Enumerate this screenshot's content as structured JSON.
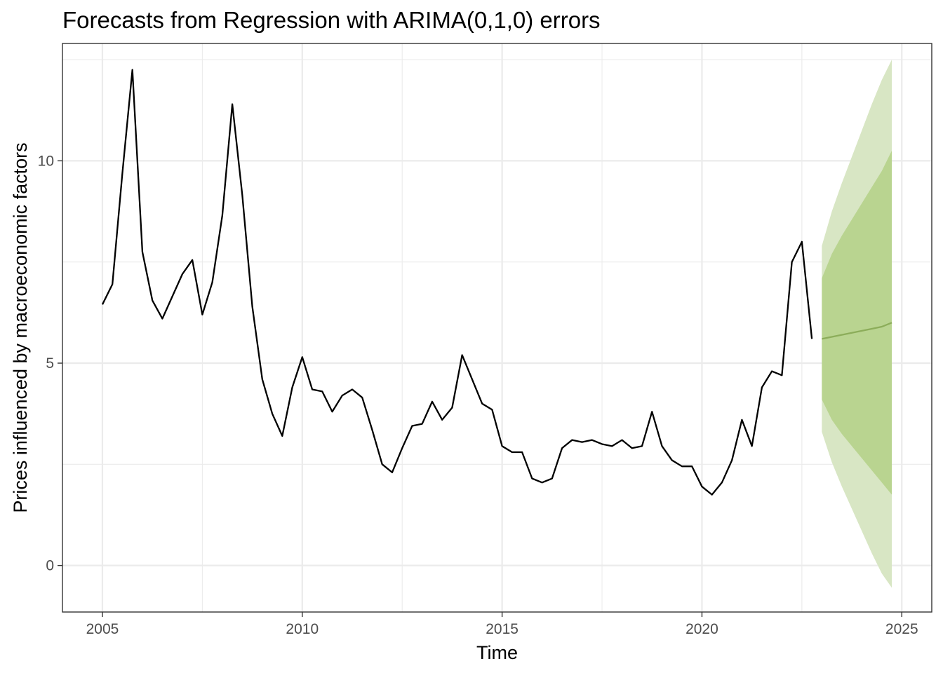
{
  "chart_data": {
    "type": "line",
    "title": "Forecasts from Regression with ARIMA(0,1,0) errors",
    "xlabel": "Time",
    "ylabel": "Prices influenced by macroeconomic factors",
    "xlim": [
      2004.0,
      2025.75
    ],
    "ylim": [
      -1.15,
      12.9
    ],
    "x_ticks": [
      2005,
      2010,
      2015,
      2020,
      2025
    ],
    "x_tick_labels": [
      "2005",
      "2010",
      "2015",
      "2020",
      "2025"
    ],
    "y_ticks": [
      0,
      5,
      10
    ],
    "y_tick_labels": [
      "0",
      "5",
      "10"
    ],
    "grid": true,
    "series": [
      {
        "values": [
          {
            "x": 2005.0,
            "y": 6.45
          },
          {
            "x": 2005.25,
            "y": 6.95
          },
          {
            "x": 2005.5,
            "y": 9.7
          },
          {
            "x": 2005.75,
            "y": 12.25
          },
          {
            "x": 2006.0,
            "y": 7.75
          },
          {
            "x": 2006.25,
            "y": 6.55
          },
          {
            "x": 2006.5,
            "y": 6.1
          },
          {
            "x": 2006.75,
            "y": 6.65
          },
          {
            "x": 2007.0,
            "y": 7.2
          },
          {
            "x": 2007.25,
            "y": 7.55
          },
          {
            "x": 2007.5,
            "y": 6.2
          },
          {
            "x": 2007.75,
            "y": 7.0
          },
          {
            "x": 2008.0,
            "y": 8.65
          },
          {
            "x": 2008.25,
            "y": 11.4
          },
          {
            "x": 2008.5,
            "y": 9.15
          },
          {
            "x": 2008.75,
            "y": 6.4
          },
          {
            "x": 2009.0,
            "y": 4.6
          },
          {
            "x": 2009.25,
            "y": 3.75
          },
          {
            "x": 2009.5,
            "y": 3.2
          },
          {
            "x": 2009.75,
            "y": 4.4
          },
          {
            "x": 2010.0,
            "y": 5.15
          },
          {
            "x": 2010.25,
            "y": 4.35
          },
          {
            "x": 2010.5,
            "y": 4.3
          },
          {
            "x": 2010.75,
            "y": 3.8
          },
          {
            "x": 2011.0,
            "y": 4.2
          },
          {
            "x": 2011.25,
            "y": 4.35
          },
          {
            "x": 2011.5,
            "y": 4.15
          },
          {
            "x": 2011.75,
            "y": 3.35
          },
          {
            "x": 2012.0,
            "y": 2.5
          },
          {
            "x": 2012.25,
            "y": 2.3
          },
          {
            "x": 2012.5,
            "y": 2.9
          },
          {
            "x": 2012.75,
            "y": 3.45
          },
          {
            "x": 2013.0,
            "y": 3.5
          },
          {
            "x": 2013.25,
            "y": 4.05
          },
          {
            "x": 2013.5,
            "y": 3.6
          },
          {
            "x": 2013.75,
            "y": 3.9
          },
          {
            "x": 2014.0,
            "y": 5.2
          },
          {
            "x": 2014.25,
            "y": 4.6
          },
          {
            "x": 2014.5,
            "y": 4.0
          },
          {
            "x": 2014.75,
            "y": 3.85
          },
          {
            "x": 2015.0,
            "y": 2.95
          },
          {
            "x": 2015.25,
            "y": 2.8
          },
          {
            "x": 2015.5,
            "y": 2.8
          },
          {
            "x": 2015.75,
            "y": 2.15
          },
          {
            "x": 2016.0,
            "y": 2.05
          },
          {
            "x": 2016.25,
            "y": 2.15
          },
          {
            "x": 2016.5,
            "y": 2.9
          },
          {
            "x": 2016.75,
            "y": 3.1
          },
          {
            "x": 2017.0,
            "y": 3.05
          },
          {
            "x": 2017.25,
            "y": 3.1
          },
          {
            "x": 2017.5,
            "y": 3.0
          },
          {
            "x": 2017.75,
            "y": 2.95
          },
          {
            "x": 2018.0,
            "y": 3.1
          },
          {
            "x": 2018.25,
            "y": 2.9
          },
          {
            "x": 2018.5,
            "y": 2.95
          },
          {
            "x": 2018.75,
            "y": 3.8
          },
          {
            "x": 2019.0,
            "y": 2.95
          },
          {
            "x": 2019.25,
            "y": 2.6
          },
          {
            "x": 2019.5,
            "y": 2.45
          },
          {
            "x": 2019.75,
            "y": 2.45
          },
          {
            "x": 2020.0,
            "y": 1.95
          },
          {
            "x": 2020.25,
            "y": 1.75
          },
          {
            "x": 2020.5,
            "y": 2.05
          },
          {
            "x": 2020.75,
            "y": 2.6
          },
          {
            "x": 2021.0,
            "y": 3.6
          },
          {
            "x": 2021.25,
            "y": 2.95
          },
          {
            "x": 2021.5,
            "y": 4.4
          },
          {
            "x": 2021.75,
            "y": 4.8
          },
          {
            "x": 2022.0,
            "y": 4.7
          },
          {
            "x": 2022.25,
            "y": 7.5
          },
          {
            "x": 2022.5,
            "y": 8.0
          },
          {
            "x": 2022.75,
            "y": 5.6
          }
        ],
        "color": "#000000"
      }
    ],
    "forecast": {
      "x": [
        2023.0,
        2023.25,
        2023.5,
        2023.75,
        2024.0,
        2024.25,
        2024.5,
        2024.75
      ],
      "mean": [
        5.6,
        5.65,
        5.7,
        5.75,
        5.8,
        5.85,
        5.9,
        6.0
      ],
      "lo80": [
        4.1,
        3.6,
        3.25,
        2.95,
        2.65,
        2.35,
        2.05,
        1.75
      ],
      "hi80": [
        7.1,
        7.7,
        8.15,
        8.55,
        8.95,
        9.35,
        9.75,
        10.25
      ],
      "lo95": [
        3.3,
        2.55,
        1.95,
        1.4,
        0.85,
        0.3,
        -0.2,
        -0.55
      ],
      "hi95": [
        7.9,
        8.75,
        9.45,
        10.1,
        10.75,
        11.4,
        12.0,
        12.5
      ],
      "mean_color": "#8cad5a",
      "band80_color": "#b9d490",
      "band95_color": "#d8e6c4"
    }
  }
}
